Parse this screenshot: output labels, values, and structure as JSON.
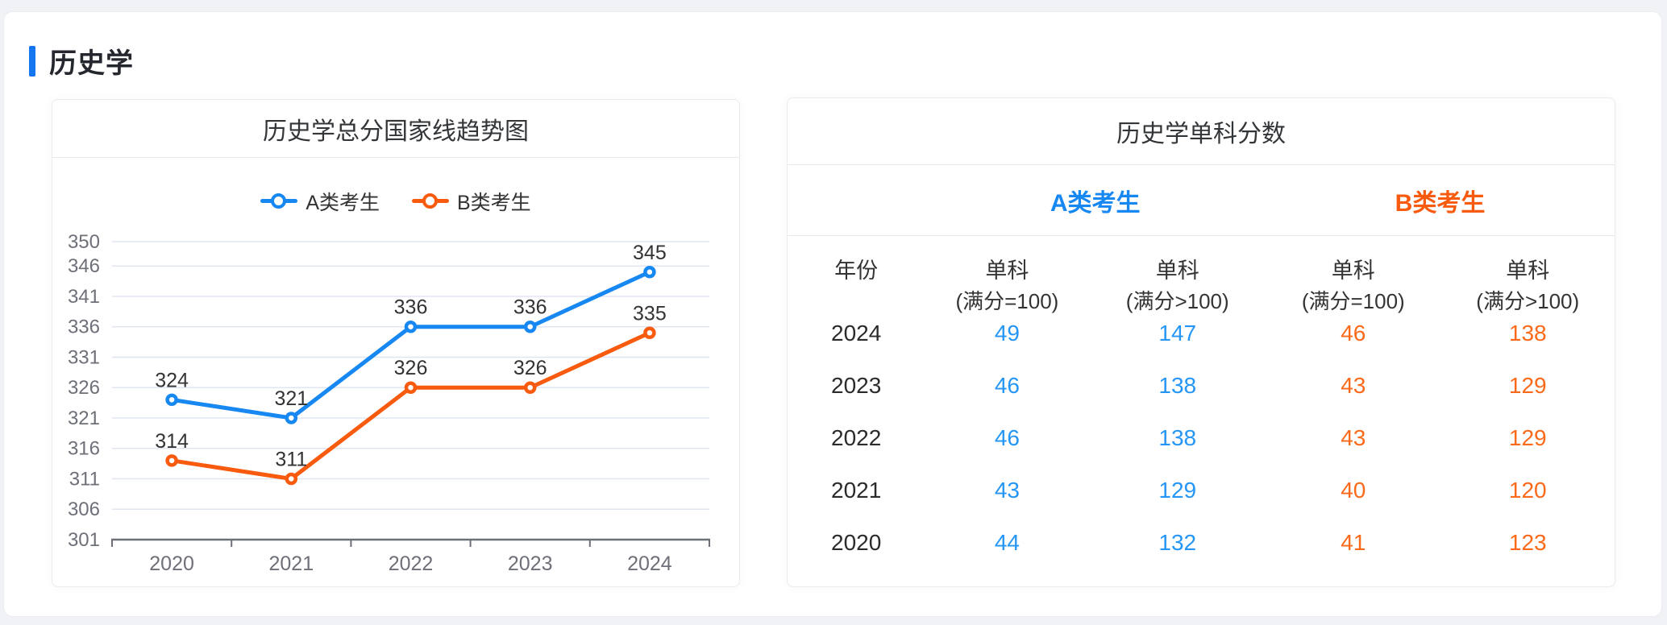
{
  "header": {
    "title": "历史学"
  },
  "colors": {
    "accent": "#1475f0",
    "blue": "#1787f2",
    "blue_value": "#2596f5",
    "orange": "#f85a0e",
    "orange_value": "#fa6a1a",
    "axis_label": "#6E7079",
    "grid_line": "#E0E6F1",
    "axis_line": "#6E7079",
    "data_label": "#333333"
  },
  "chart": {
    "title": "历史学总分国家线趋势图"
  },
  "chart_data": {
    "type": "line",
    "title": "历史学总分国家线趋势图",
    "x": [
      "2020",
      "2021",
      "2022",
      "2023",
      "2024"
    ],
    "series": [
      {
        "name": "A类考生",
        "color": "#1787f2",
        "values": [
          324,
          321,
          336,
          336,
          345
        ]
      },
      {
        "name": "B类考生",
        "color": "#f85a0e",
        "values": [
          314,
          311,
          326,
          326,
          335
        ]
      }
    ],
    "ylim": [
      301,
      350
    ],
    "yticks": [
      301,
      306,
      311,
      316,
      321,
      326,
      331,
      336,
      341,
      346,
      350
    ],
    "grid": true,
    "legend_position": "top",
    "point_style": "empty-circle",
    "data_labels": true
  },
  "table": {
    "title": "历史学单科分数",
    "groups": [
      {
        "label": "A类考生",
        "color": "#1787f2",
        "value_color": "#2596f5"
      },
      {
        "label": "B类考生",
        "color": "#f85a0e",
        "value_color": "#fa6a1a"
      }
    ],
    "columns": [
      {
        "line1": "年份",
        "line2": ""
      },
      {
        "line1": "单科",
        "line2": "(满分=100)"
      },
      {
        "line1": "单科",
        "line2": "(满分>100)"
      },
      {
        "line1": "单科",
        "line2": "(满分=100)"
      },
      {
        "line1": "单科",
        "line2": "(满分>100)"
      }
    ],
    "rows": [
      {
        "year": "2024",
        "values": [
          "49",
          "147",
          "46",
          "138"
        ]
      },
      {
        "year": "2023",
        "values": [
          "46",
          "138",
          "43",
          "129"
        ]
      },
      {
        "year": "2022",
        "values": [
          "46",
          "138",
          "43",
          "129"
        ]
      },
      {
        "year": "2021",
        "values": [
          "43",
          "129",
          "40",
          "120"
        ]
      },
      {
        "year": "2020",
        "values": [
          "44",
          "132",
          "41",
          "123"
        ]
      }
    ]
  }
}
